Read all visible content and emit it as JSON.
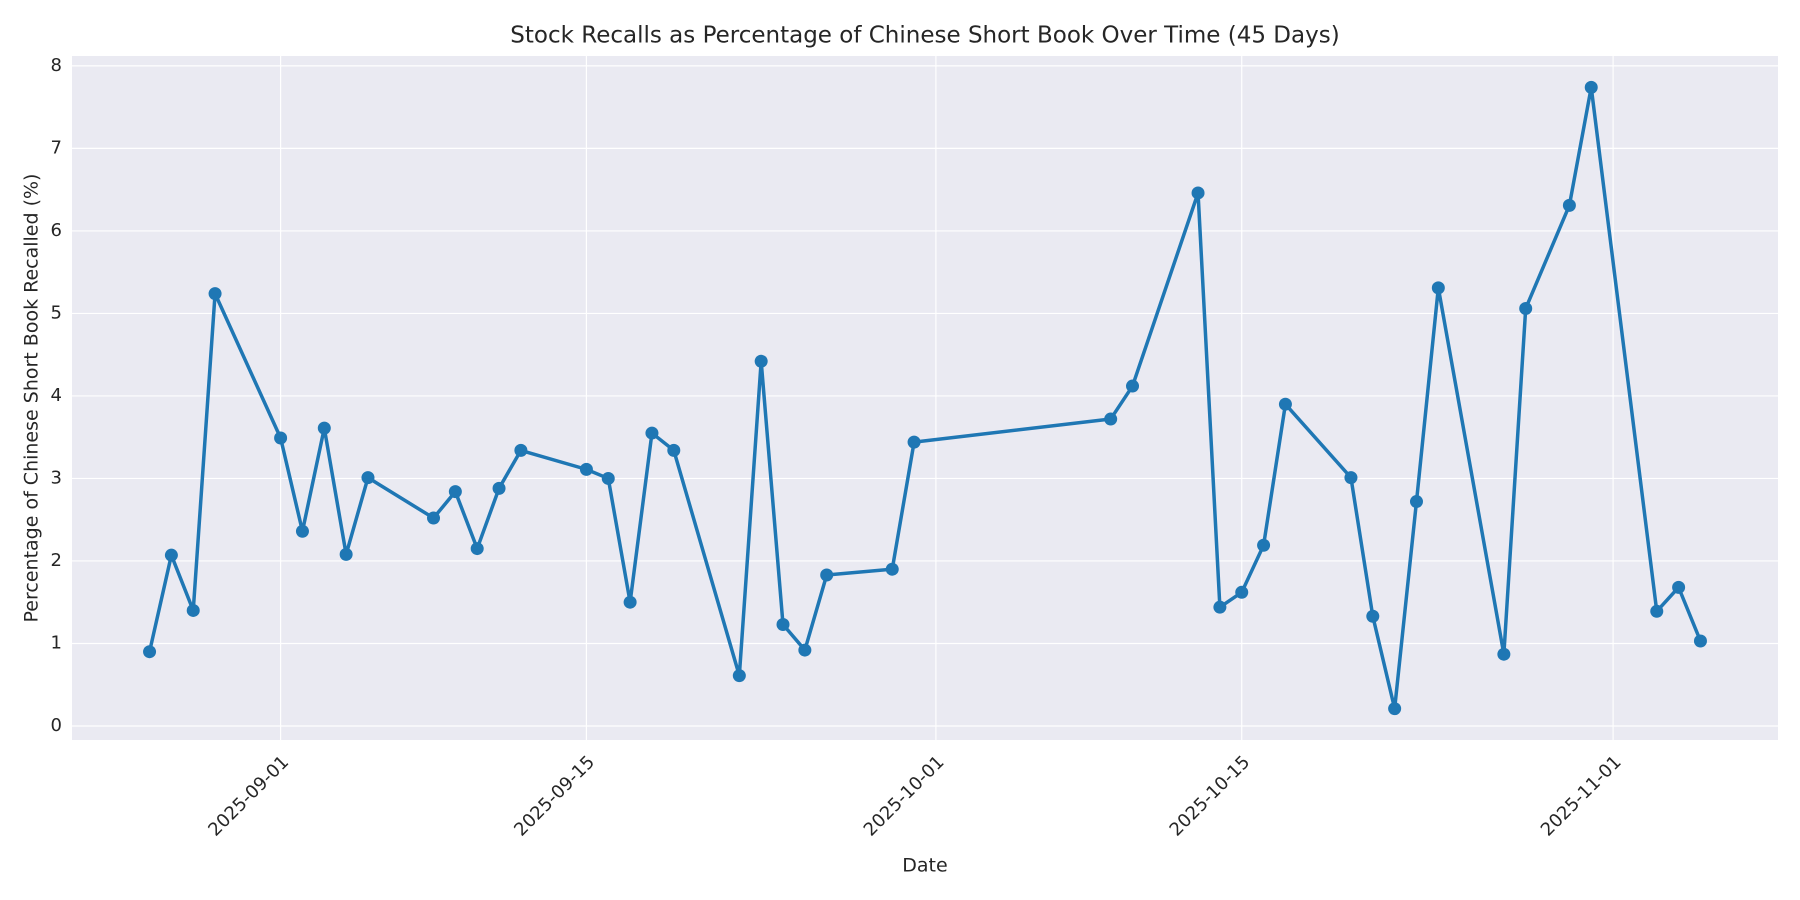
{
  "chart_data": {
    "type": "line",
    "title": "Stock Recalls as Percentage of Chinese Short Book Over Time (45 Days)",
    "xlabel": "Date",
    "ylabel": "Percentage of Chinese Short Book Recalled (%)",
    "x": [
      "2025-08-26",
      "2025-08-27",
      "2025-08-28",
      "2025-08-29",
      "2025-09-01",
      "2025-09-02",
      "2025-09-03",
      "2025-09-04",
      "2025-09-05",
      "2025-09-08",
      "2025-09-09",
      "2025-09-10",
      "2025-09-11",
      "2025-09-12",
      "2025-09-15",
      "2025-09-16",
      "2025-09-17",
      "2025-09-18",
      "2025-09-19",
      "2025-09-22",
      "2025-09-23",
      "2025-09-24",
      "2025-09-25",
      "2025-09-26",
      "2025-09-29",
      "2025-09-30",
      "2025-10-09",
      "2025-10-10",
      "2025-10-13",
      "2025-10-14",
      "2025-10-15",
      "2025-10-16",
      "2025-10-17",
      "2025-10-20",
      "2025-10-21",
      "2025-10-22",
      "2025-10-23",
      "2025-10-24",
      "2025-10-27",
      "2025-10-28",
      "2025-10-30",
      "2025-10-31",
      "2025-11-03",
      "2025-11-04",
      "2025-11-05"
    ],
    "series": [
      {
        "color": "#1f77b4",
        "values": [
          0.9,
          2.07,
          1.4,
          5.24,
          3.49,
          2.36,
          3.61,
          2.08,
          3.01,
          2.52,
          2.84,
          2.15,
          2.88,
          3.34,
          3.11,
          3.0,
          1.5,
          3.55,
          3.34,
          0.61,
          4.42,
          1.23,
          0.92,
          1.83,
          1.9,
          3.44,
          3.72,
          4.12,
          6.46,
          1.44,
          1.62,
          2.19,
          3.9,
          3.01,
          1.33,
          0.21,
          2.72,
          5.31,
          0.87,
          5.06,
          6.31,
          7.74,
          1.39,
          1.68,
          1.03
        ]
      }
    ],
    "xlim": [
      "2025-08-22T10:48:00Z",
      "2025-11-08T13:12:00Z"
    ],
    "xticks": [
      "2025-09-01",
      "2025-09-15",
      "2025-10-01",
      "2025-10-15",
      "2025-11-01"
    ],
    "ylim": [
      -0.17,
      8.12
    ],
    "yticks": [
      0,
      1,
      2,
      3,
      4,
      5,
      6,
      7,
      8
    ],
    "grid": true,
    "background": "#eaeaf2"
  }
}
